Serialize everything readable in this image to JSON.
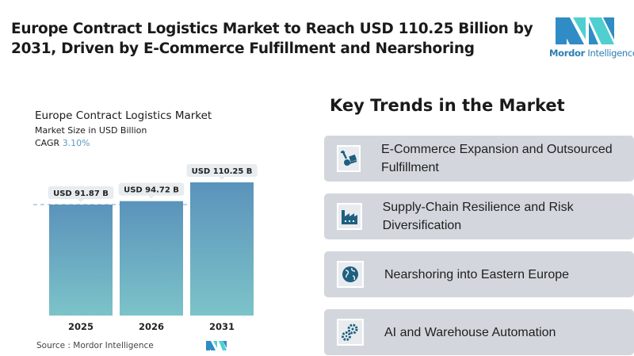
{
  "header": {
    "title": "Europe Contract Logistics Market to Reach USD 110.25 Billion by 2031, Driven by E-Commerce Fulfillment and Nearshoring",
    "logo_text_a": "Mordor",
    "logo_text_b": "Intelligence"
  },
  "chart_data": {
    "type": "bar",
    "title": "Europe Contract Logistics Market",
    "subtitle": "Market Size in USD Billion",
    "cagr_label": "CAGR",
    "cagr_value": "3.10%",
    "categories": [
      "2025",
      "2026",
      "2031"
    ],
    "values": [
      91.87,
      94.72,
      110.25
    ],
    "data_labels": [
      "USD 91.87 B",
      "USD 94.72 B",
      "USD 110.25 B"
    ],
    "bar_color_top": "#5b93bb",
    "bar_color_bottom": "#7cc3c9",
    "grid": false,
    "reference_line": "dashed at first bar value"
  },
  "source": "Source :  Mordor Intelligence",
  "trends": {
    "title": "Key Trends in the Market",
    "items": [
      {
        "icon": "hand-truck-icon",
        "label": "E-Commerce Expansion and Outsourced Fulfillment"
      },
      {
        "icon": "factory-icon",
        "label": "Supply-Chain Resilience and Risk Diversification"
      },
      {
        "icon": "globe-icon",
        "label": "Nearshoring into Eastern Europe"
      },
      {
        "icon": "gears-icon",
        "label": "AI and Warehouse Automation"
      }
    ]
  },
  "colors": {
    "icon": "#1f5f80",
    "card": "#d3d7dd"
  }
}
